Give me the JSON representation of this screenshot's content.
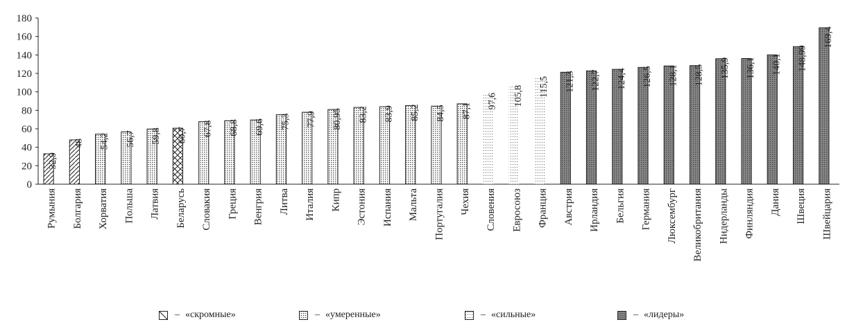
{
  "chart_data": {
    "type": "bar",
    "title": "",
    "xlabel": "",
    "ylabel": "",
    "ylim": [
      0,
      180
    ],
    "yticks": [
      "0",
      "20",
      "40",
      "60",
      "80",
      "100",
      "120",
      "140",
      "160",
      "180"
    ],
    "grid": false,
    "categories": [
      "Румыния",
      "Болгария",
      "Хорватия",
      "Польша",
      "Латвия",
      "Беларусь",
      "Словакия",
      "Греция",
      "Венгрия",
      "Литва",
      "Италия",
      "Кипр",
      "Эстония",
      "Испания",
      "Мальта",
      "Португалия",
      "Чехия",
      "Словения",
      "Евросоюз",
      "Франция",
      "Австрия",
      "Ирландия",
      "Бельгия",
      "Германия",
      "Люксембург",
      "Великобритания",
      "Нидерланды",
      "Финляндия",
      "Дания",
      "Швеция",
      "Швейцария"
    ],
    "values": [
      32.9,
      48,
      54.2,
      56.7,
      59.8,
      60.7,
      67.8,
      68.8,
      69.6,
      75.3,
      77.9,
      80.95,
      83.2,
      83.9,
      85.2,
      84.5,
      87.1,
      97.6,
      105.8,
      115.5,
      121.3,
      122.7,
      124.4,
      126.5,
      128.1,
      128.5,
      135.9,
      136.1,
      140.1,
      148.99,
      169.4
    ],
    "labels": [
      "32,9",
      "48",
      "54,2",
      "56,7",
      "59,8",
      "60,7",
      "67,8",
      "68,8",
      "69,6",
      "75,3",
      "77,9",
      "80,95",
      "83,2",
      "83,9",
      "85,2",
      "84,5",
      "87,1",
      "97,6",
      "105,8",
      "115,5",
      "121,3",
      "122,7",
      "124,4",
      "126,5",
      "128,1",
      "128,5",
      "135,9",
      "136,1",
      "140,1",
      "148,99",
      "169,4"
    ],
    "groups": [
      "skromnye",
      "skromnye",
      "umerennye",
      "umerennye",
      "umerennye",
      "belarus",
      "umerennye",
      "umerennye",
      "umerennye",
      "umerennye",
      "umerennye",
      "umerennye",
      "umerennye",
      "umerennye",
      "umerennye",
      "umerennye",
      "umerennye",
      "silnye",
      "silnye",
      "silnye",
      "lidery",
      "lidery",
      "lidery",
      "lidery",
      "lidery",
      "lidery",
      "lidery",
      "lidery",
      "lidery",
      "lidery",
      "lidery"
    ],
    "legend": [
      {
        "key": "skromnye",
        "label": "«скромные»"
      },
      {
        "key": "umerennye",
        "label": "«умеренные»"
      },
      {
        "key": "silnye",
        "label": "«сильные»"
      },
      {
        "key": "lidery",
        "label": "«лидеры»"
      }
    ],
    "legend_dash": "–"
  }
}
